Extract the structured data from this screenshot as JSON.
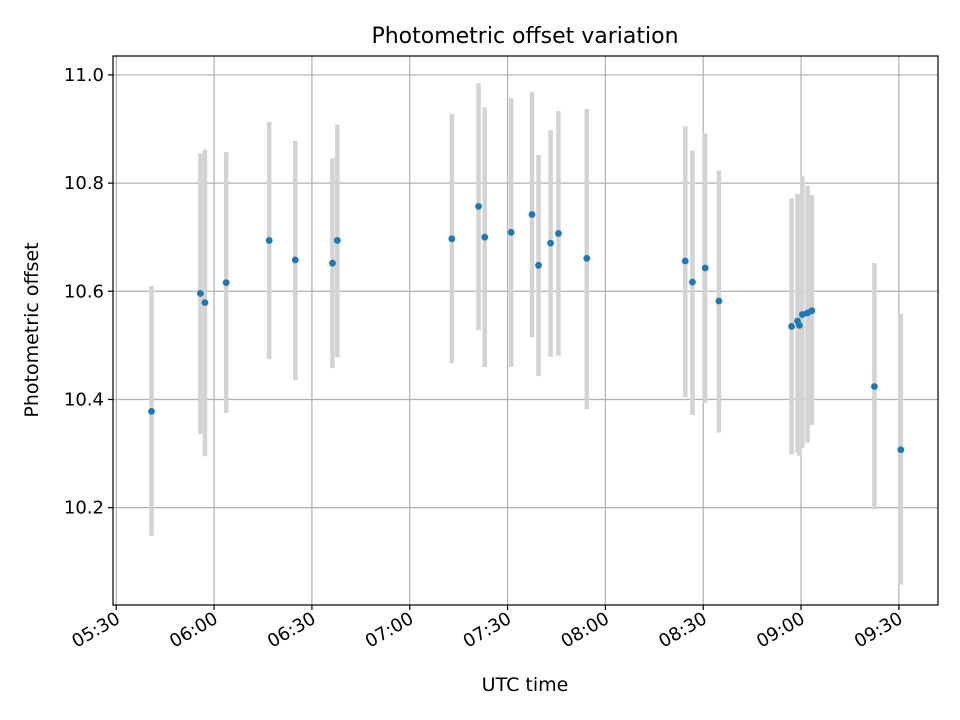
{
  "chart_data": {
    "type": "scatter",
    "title": "Photometric offset variation",
    "xlabel": "UTC time",
    "ylabel": "Photometric offset",
    "xlim": [
      "05:29",
      "09:42"
    ],
    "ylim": [
      10.02,
      11.035
    ],
    "grid": true,
    "x_ticks": [
      "05:30",
      "06:00",
      "06:30",
      "07:00",
      "07:30",
      "08:00",
      "08:30",
      "09:00",
      "09:30"
    ],
    "y_ticks": [
      10.2,
      10.4,
      10.6,
      10.8,
      11.0
    ],
    "colors": {
      "marker": "#1f77b4",
      "errorbar": "#d3d3d3",
      "grid": "#b0b0b0"
    },
    "points": [
      {
        "x": "05:40.8",
        "y": 10.378,
        "yerr_low": 10.148,
        "yerr_high": 10.61
      },
      {
        "x": "05:55.8",
        "y": 10.596,
        "yerr_low": 10.336,
        "yerr_high": 10.855
      },
      {
        "x": "05:57.2",
        "y": 10.579,
        "yerr_low": 10.295,
        "yerr_high": 10.862
      },
      {
        "x": "06:03.7",
        "y": 10.616,
        "yerr_low": 10.375,
        "yerr_high": 10.857
      },
      {
        "x": "06:16.9",
        "y": 10.694,
        "yerr_low": 10.475,
        "yerr_high": 10.913
      },
      {
        "x": "06:24.9",
        "y": 10.658,
        "yerr_low": 10.436,
        "yerr_high": 10.878
      },
      {
        "x": "06:36.3",
        "y": 10.652,
        "yerr_low": 10.458,
        "yerr_high": 10.846
      },
      {
        "x": "06:37.8",
        "y": 10.694,
        "yerr_low": 10.478,
        "yerr_high": 10.908
      },
      {
        "x": "07:12.9",
        "y": 10.697,
        "yerr_low": 10.467,
        "yerr_high": 10.928
      },
      {
        "x": "07:21.1",
        "y": 10.757,
        "yerr_low": 10.528,
        "yerr_high": 10.985
      },
      {
        "x": "07:23.0",
        "y": 10.7,
        "yerr_low": 10.46,
        "yerr_high": 10.94
      },
      {
        "x": "07:31.1",
        "y": 10.709,
        "yerr_low": 10.46,
        "yerr_high": 10.957
      },
      {
        "x": "07:37.5",
        "y": 10.742,
        "yerr_low": 10.515,
        "yerr_high": 10.968
      },
      {
        "x": "07:39.5",
        "y": 10.648,
        "yerr_low": 10.443,
        "yerr_high": 10.852
      },
      {
        "x": "07:43.2",
        "y": 10.689,
        "yerr_low": 10.479,
        "yerr_high": 10.898
      },
      {
        "x": "07:45.6",
        "y": 10.707,
        "yerr_low": 10.481,
        "yerr_high": 10.933
      },
      {
        "x": "07:54.3",
        "y": 10.661,
        "yerr_low": 10.382,
        "yerr_high": 10.937
      },
      {
        "x": "08:24.5",
        "y": 10.656,
        "yerr_low": 10.404,
        "yerr_high": 10.905
      },
      {
        "x": "08:26.7",
        "y": 10.617,
        "yerr_low": 10.371,
        "yerr_high": 10.86
      },
      {
        "x": "08:30.6",
        "y": 10.643,
        "yerr_low": 10.394,
        "yerr_high": 10.892
      },
      {
        "x": "08:34.8",
        "y": 10.582,
        "yerr_low": 10.339,
        "yerr_high": 10.823
      },
      {
        "x": "08:57.1",
        "y": 10.535,
        "yerr_low": 10.298,
        "yerr_high": 10.772
      },
      {
        "x": "08:58.9",
        "y": 10.545,
        "yerr_low": 10.302,
        "yerr_high": 10.78
      },
      {
        "x": "08:59.5",
        "y": 10.537,
        "yerr_low": 10.296,
        "yerr_high": 10.777
      },
      {
        "x": "09:00.4",
        "y": 10.557,
        "yerr_low": 10.31,
        "yerr_high": 10.813
      },
      {
        "x": "09:02.0",
        "y": 10.56,
        "yerr_low": 10.32,
        "yerr_high": 10.795
      },
      {
        "x": "09:03.3",
        "y": 10.564,
        "yerr_low": 10.353,
        "yerr_high": 10.778
      },
      {
        "x": "09:22.5",
        "y": 10.424,
        "yerr_low": 10.197,
        "yerr_high": 10.652
      },
      {
        "x": "09:30.6",
        "y": 10.307,
        "yerr_low": 10.058,
        "yerr_high": 10.558
      }
    ]
  }
}
